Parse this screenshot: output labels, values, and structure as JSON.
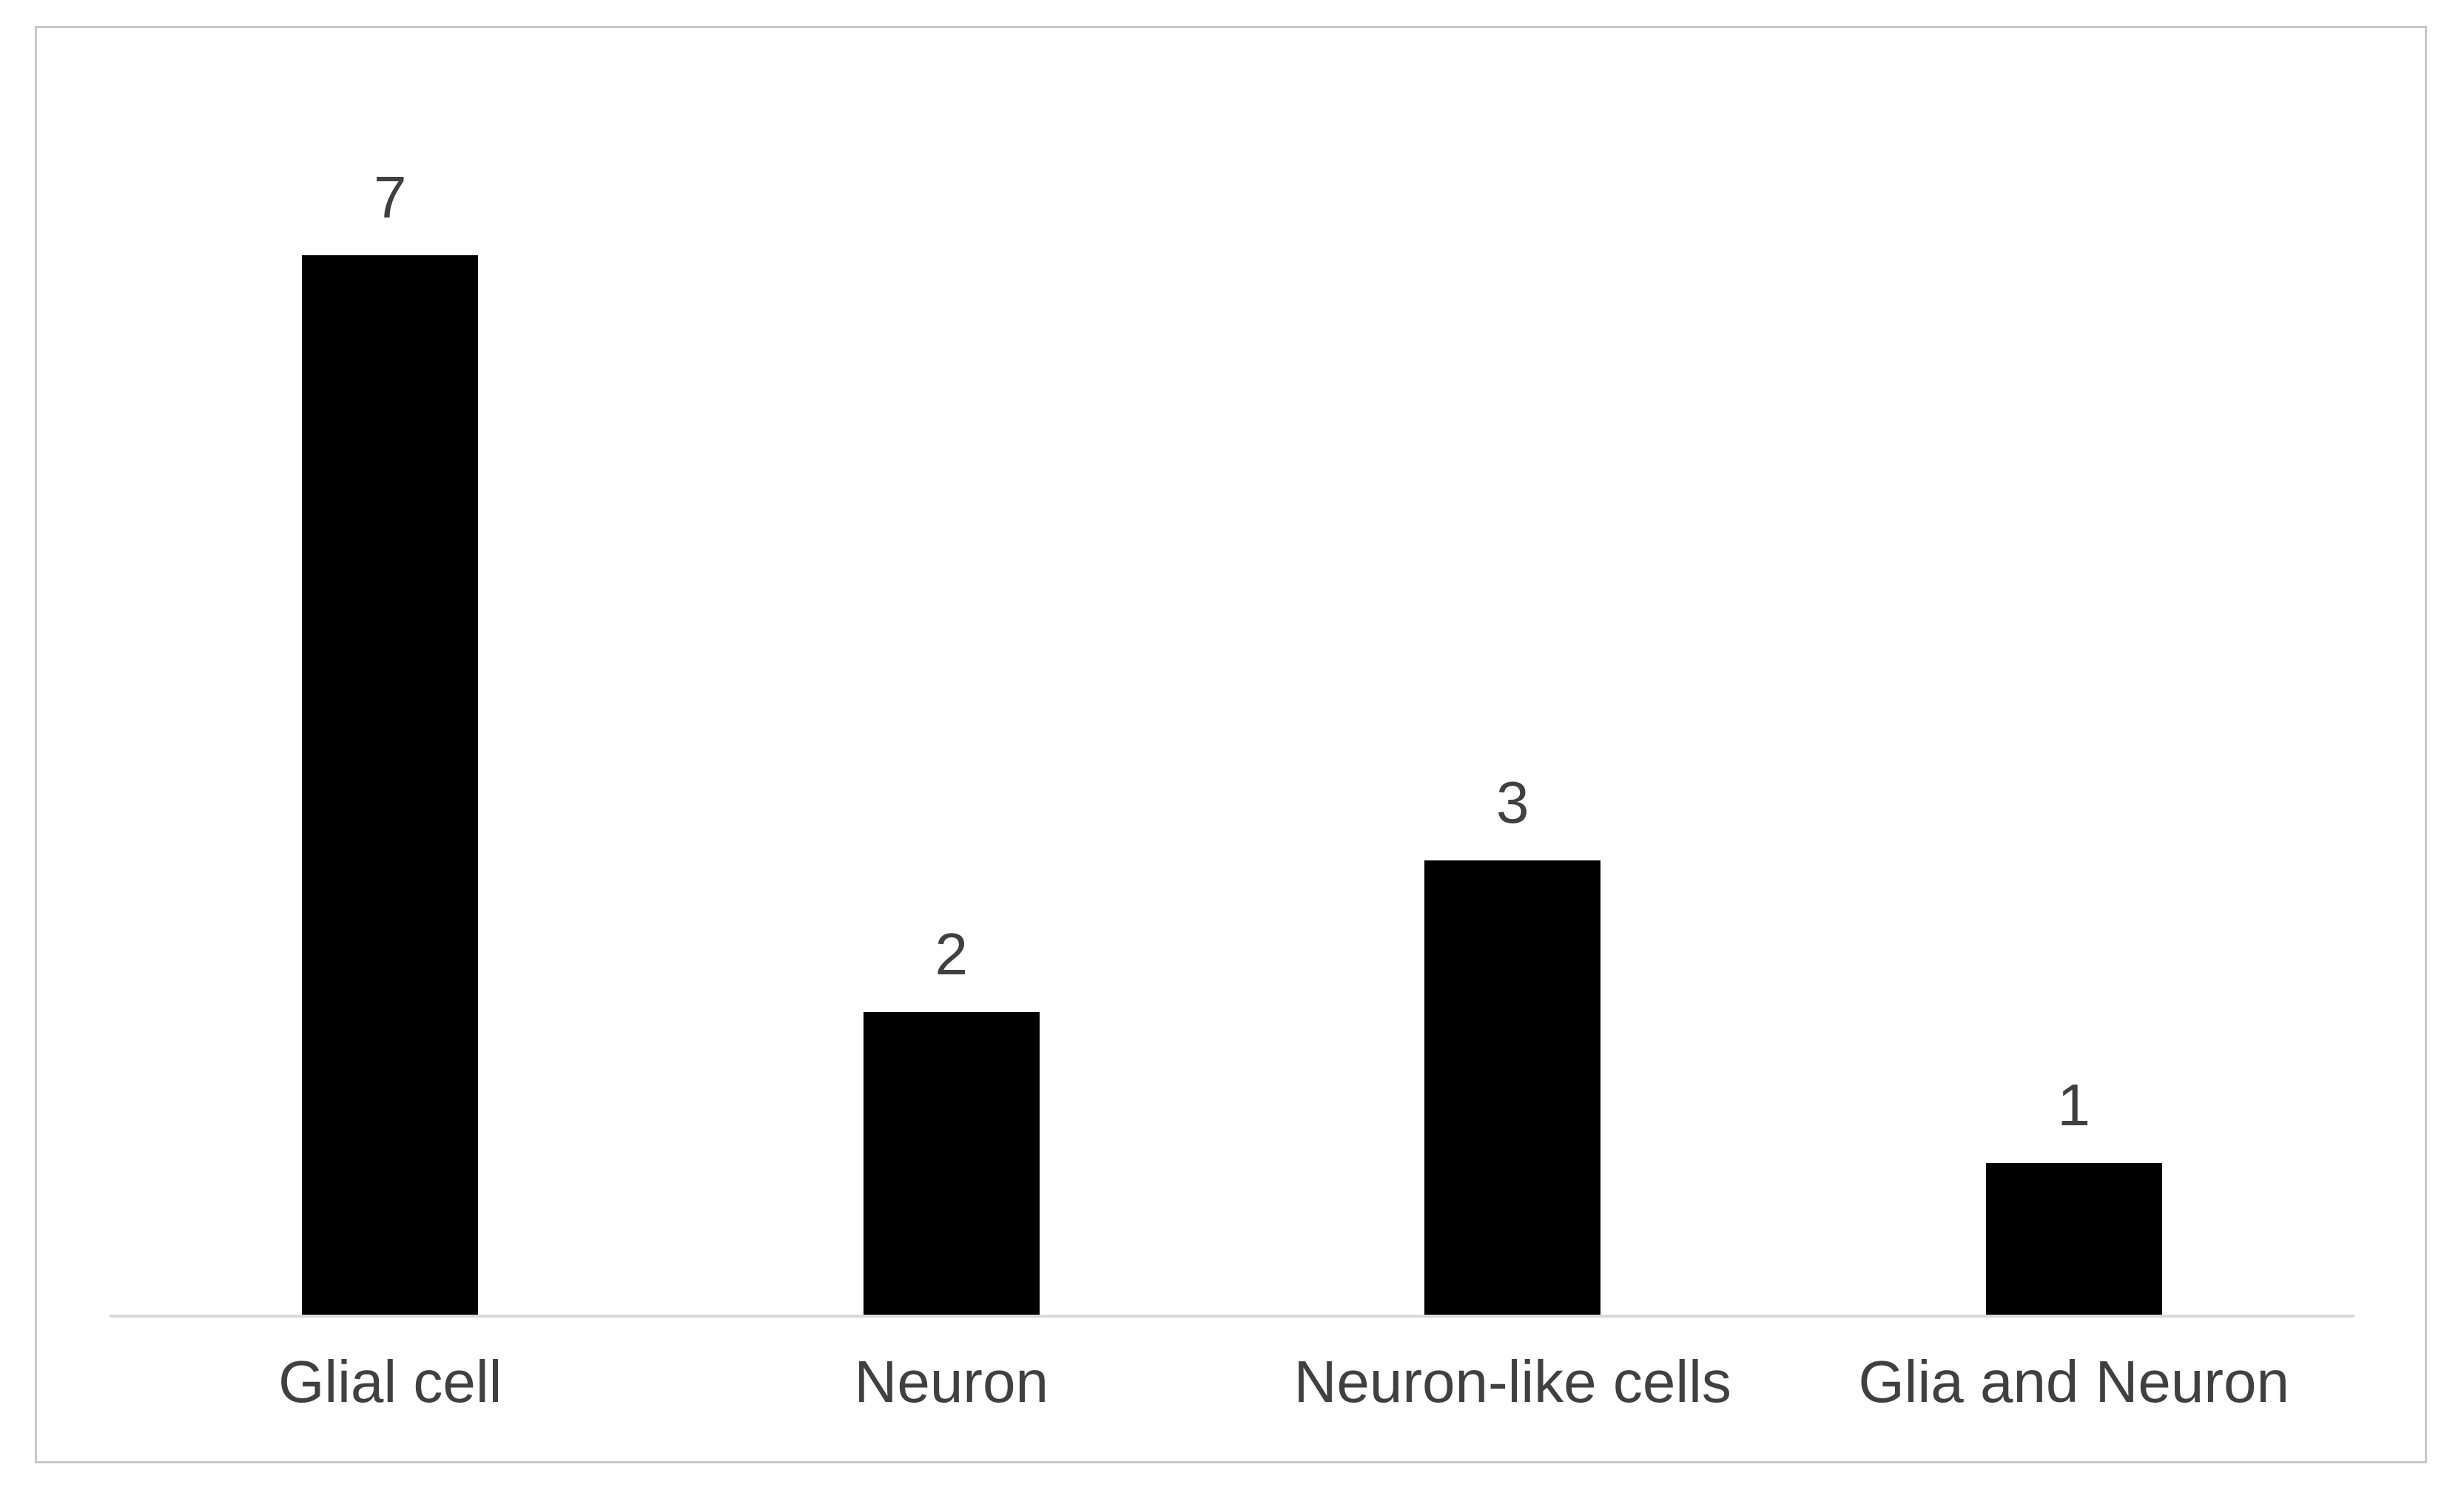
{
  "figure": {
    "background": "#ffffff",
    "frame_border_color": "#c8c8c8"
  },
  "chart_data": {
    "type": "bar",
    "title": "",
    "categories": [
      "Glial cell",
      "Neuron",
      "Neuron-like cells",
      "Glia and Neuron"
    ],
    "values": [
      7,
      2,
      3,
      1
    ],
    "xlabel": "",
    "ylabel": "",
    "ylim": [
      0,
      8.5
    ],
    "grid": false,
    "legend": "none",
    "y_axis_visible": false,
    "data_labels_visible": true,
    "bar_color": "#000000",
    "label_color": "#404040",
    "axis_line_color": "#d9d9d9"
  }
}
